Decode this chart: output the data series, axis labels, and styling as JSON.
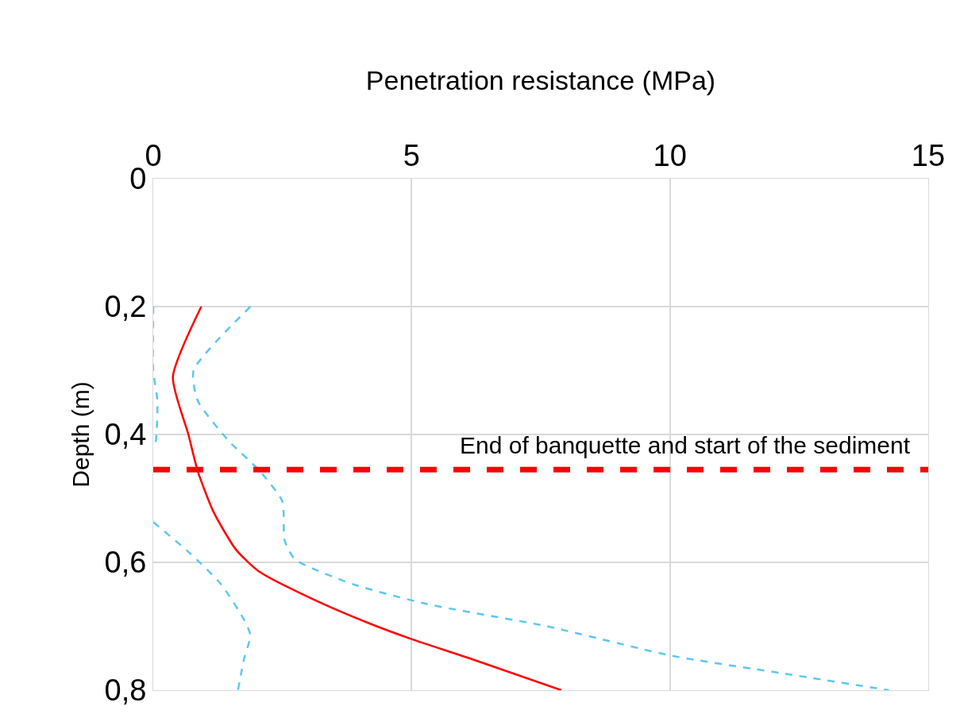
{
  "chart_data": {
    "type": "line",
    "xlabel": "Penetration resistance (MPa)",
    "ylabel": "Depth (m)",
    "xlim": [
      0,
      15
    ],
    "xticks": [
      0,
      5,
      10,
      15
    ],
    "ylim": [
      0.8,
      0
    ],
    "yticks": [
      0,
      {
        "value": 0.2,
        "label": "0,2"
      },
      {
        "value": 0.4,
        "label": "0,4"
      },
      {
        "value": 0.6,
        "label": "0,6"
      },
      {
        "value": 0.8,
        "label": "0,8"
      }
    ],
    "grid": true,
    "marker": "none",
    "series": [
      {
        "color": "#ff0000",
        "line_style": "solid",
        "x": [
          0.93,
          0.38,
          0.68,
          0.86,
          1.16,
          1.6,
          2.06,
          3.1,
          4.17,
          5,
          6.12,
          7.9
        ],
        "values": [
          0.2,
          0.31,
          0.4,
          0.457,
          0.52,
          0.58,
          0.615,
          0.658,
          0.695,
          0.72,
          0.75,
          0.8
        ]
      },
      {
        "color": "#5bc8f0",
        "line_style": "dashed",
        "x": [
          1.88,
          0.78,
          0.86,
          1.46,
          2.06,
          2.5,
          2.54,
          2.74,
          3.86,
          5.29,
          7.62,
          10.03,
          12.13,
          14.24
        ],
        "values": [
          0.2,
          0.3,
          0.347,
          0.41,
          0.457,
          0.505,
          0.565,
          0.595,
          0.634,
          0.665,
          0.7,
          0.746,
          0.773,
          0.8
        ]
      },
      {
        "color": "#5bc8f0",
        "line_style": "dashed",
        "x": [
          0,
          0,
          0.08,
          0.05,
          0,
          null,
          0,
          0.7,
          1.31,
          1.76,
          1.88,
          1.76,
          1.64
        ],
        "values": [
          0.2,
          0.3,
          0.347,
          0.41,
          0.42,
          null,
          0.537,
          0.585,
          0.634,
          0.69,
          0.714,
          0.75,
          0.8
        ]
      }
    ],
    "ref_lines": [
      {
        "axis": "y",
        "value": 0.455,
        "label": "End of banquette and start of the sediment",
        "color": "#ff0000",
        "line_style": "dashed"
      }
    ]
  }
}
